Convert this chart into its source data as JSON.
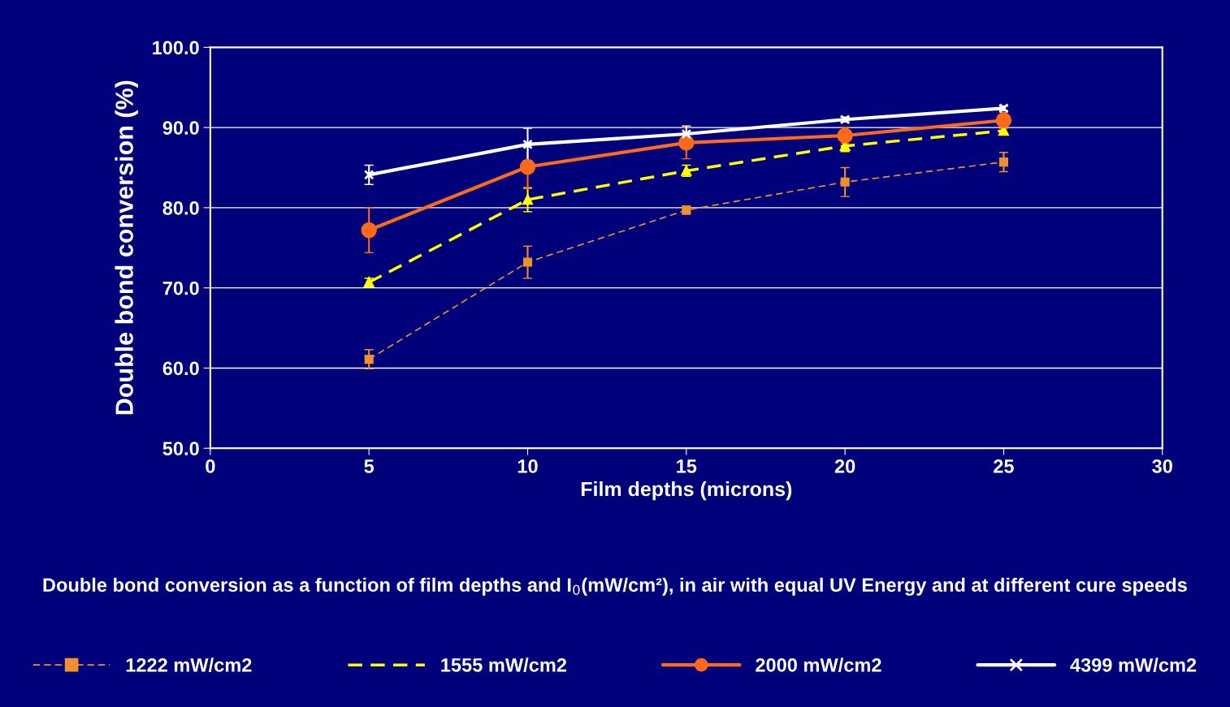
{
  "chart_data": {
    "type": "line",
    "xlabel": "Film depths (microns)",
    "ylabel": "Double bond conversion (%)",
    "x": [
      5,
      10,
      15,
      20,
      25
    ],
    "series": [
      {
        "name": "1222 mW/cm2",
        "color": "#f0902c",
        "values": [
          61.1,
          73.2,
          79.7,
          83.2,
          85.7
        ],
        "errors": [
          1.2,
          2.0,
          0.5,
          1.8,
          1.2
        ],
        "line_style": "dashed",
        "marker": "square"
      },
      {
        "name": "1555 mW/cm2",
        "color": "#ffff00",
        "values": [
          70.7,
          81.0,
          84.6,
          87.7,
          89.6
        ],
        "errors": [
          0.5,
          1.5,
          0.7,
          0.7,
          0.5
        ],
        "line_style": "dashed",
        "marker": "triangle"
      },
      {
        "name": "2000 mW/cm2",
        "color": "#ff6a1a",
        "values": [
          77.2,
          85.1,
          88.1,
          89.0,
          90.9
        ],
        "errors": [
          2.8,
          2.7,
          2.0,
          1.0,
          1.0
        ],
        "line_style": "solid",
        "marker": "circle"
      },
      {
        "name": "4399 mW/cm2",
        "color": "#ffffff",
        "values": [
          84.1,
          87.9,
          89.2,
          91.0,
          92.4
        ],
        "errors": [
          1.2,
          2.0,
          1.0,
          0.3,
          0.3
        ],
        "line_style": "solid",
        "marker": "cross"
      }
    ],
    "xlim": [
      0,
      30
    ],
    "xticks": [
      0,
      5,
      10,
      15,
      20,
      25,
      30
    ],
    "ylim": [
      50,
      100
    ],
    "yticks": [
      {
        "value": 50,
        "label": "50.0"
      },
      {
        "value": 60,
        "label": "60.0"
      },
      {
        "value": 70,
        "label": "70.0"
      },
      {
        "value": 80,
        "label": "80.0"
      },
      {
        "value": 90,
        "label": "90.0"
      },
      {
        "value": 100,
        "label": "100.0"
      }
    ],
    "grid": "y",
    "legend": "bottom",
    "annotations": [
      "Double bond conversion as a function of film depths and I$_{0}$(mW/cm²), in air with equal UV Energy and at different cure speeds"
    ]
  }
}
